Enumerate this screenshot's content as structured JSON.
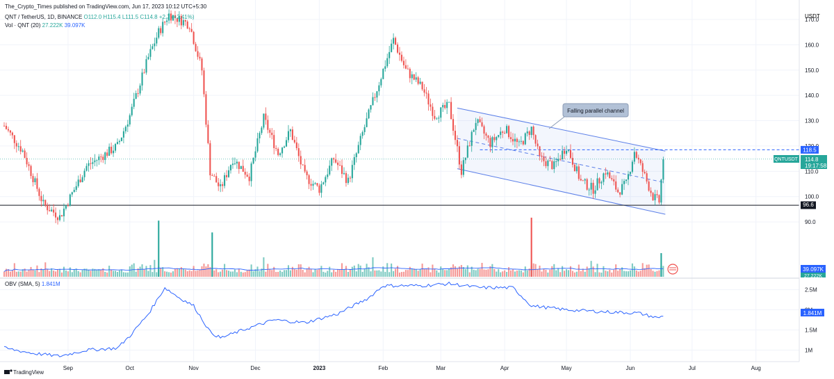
{
  "header": {
    "published_by": "The_Crypto_Times published on TradingView.com, Jun 17, 2023 10:12 UTC+5:30",
    "symbol_line": "QNT / TetherUS, 1D, BINANCE",
    "ohlc": {
      "open": "O112.0",
      "high": "H115.4",
      "low": "L111.5",
      "close": "C114.8",
      "change": "+2.7 (+2.41%)"
    },
    "volume_line": {
      "label": "Vol · QNT (20)",
      "v1": "27.222K",
      "v2": "39.097K"
    },
    "obv_line": {
      "label": "OBV (SMA, 5)",
      "value": "1.841M"
    }
  },
  "footer": {
    "brand": "TradingView"
  },
  "colors": {
    "up": "#26a69a",
    "down": "#ef5350",
    "channel": "#5b7fe8",
    "obv": "#2962ff",
    "vol_ma": "#2962ff",
    "level_line": "#131722",
    "resistance": "#2962ff"
  },
  "chart_data": [
    {
      "type": "candlestick",
      "title": "QNT / TetherUS, 1D, BINANCE",
      "y_unit": "USDT",
      "ylim": [
        87,
        170
      ],
      "y_ticks": [
        "90.0",
        "100.0",
        "110.0",
        "120.0",
        "130.0",
        "140.0",
        "150.0",
        "160.0",
        "170.0"
      ],
      "x_ticks": [
        "Sep",
        "Oct",
        "Nov",
        "Dec",
        "2023",
        "Feb",
        "Mar",
        "Apr",
        "May",
        "Jun",
        "Jul",
        "Aug"
      ],
      "close_path": [
        {
          "date": "2022-08-01",
          "close": 128
        },
        {
          "date": "2022-08-10",
          "close": 118
        },
        {
          "date": "2022-08-20",
          "close": 97
        },
        {
          "date": "2022-08-28",
          "close": 92
        },
        {
          "date": "2022-09-10",
          "close": 112
        },
        {
          "date": "2022-09-25",
          "close": 120
        },
        {
          "date": "2022-10-01",
          "close": 132
        },
        {
          "date": "2022-10-10",
          "close": 155
        },
        {
          "date": "2022-10-15",
          "close": 165
        },
        {
          "date": "2022-10-20",
          "close": 172
        },
        {
          "date": "2022-10-30",
          "close": 168
        },
        {
          "date": "2022-11-05",
          "close": 150
        },
        {
          "date": "2022-11-09",
          "close": 110
        },
        {
          "date": "2022-11-14",
          "close": 103
        },
        {
          "date": "2022-11-20",
          "close": 115
        },
        {
          "date": "2022-11-28",
          "close": 108
        },
        {
          "date": "2022-12-05",
          "close": 131
        },
        {
          "date": "2022-12-12",
          "close": 117
        },
        {
          "date": "2022-12-18",
          "close": 126
        },
        {
          "date": "2022-12-25",
          "close": 108
        },
        {
          "date": "2023-01-01",
          "close": 103
        },
        {
          "date": "2023-01-08",
          "close": 115
        },
        {
          "date": "2023-01-15",
          "close": 106
        },
        {
          "date": "2023-01-22",
          "close": 125
        },
        {
          "date": "2023-02-01",
          "close": 150
        },
        {
          "date": "2023-02-06",
          "close": 162
        },
        {
          "date": "2023-02-12",
          "close": 150
        },
        {
          "date": "2023-02-20",
          "close": 143
        },
        {
          "date": "2023-02-26",
          "close": 132
        },
        {
          "date": "2023-03-05",
          "close": 136
        },
        {
          "date": "2023-03-11",
          "close": 110
        },
        {
          "date": "2023-03-18",
          "close": 130
        },
        {
          "date": "2023-03-25",
          "close": 121
        },
        {
          "date": "2023-04-01",
          "close": 127
        },
        {
          "date": "2023-04-08",
          "close": 120
        },
        {
          "date": "2023-04-14",
          "close": 127
        },
        {
          "date": "2023-04-18",
          "close": 115
        },
        {
          "date": "2023-04-25",
          "close": 112
        },
        {
          "date": "2023-05-01",
          "close": 120
        },
        {
          "date": "2023-05-08",
          "close": 106
        },
        {
          "date": "2023-05-14",
          "close": 103
        },
        {
          "date": "2023-05-20",
          "close": 110
        },
        {
          "date": "2023-05-26",
          "close": 102
        },
        {
          "date": "2023-05-30",
          "close": 105
        },
        {
          "date": "2023-06-03",
          "close": 118
        },
        {
          "date": "2023-06-08",
          "close": 108
        },
        {
          "date": "2023-06-12",
          "close": 100
        },
        {
          "date": "2023-06-15",
          "close": 98
        },
        {
          "date": "2023-06-17",
          "close": 114.8
        }
      ],
      "annotations": {
        "channel_label": "Falling parallel channel",
        "resistance": {
          "value": 118.5,
          "label": "118.5"
        },
        "support": {
          "value": 96.6,
          "label": "96.6"
        },
        "last_price": {
          "symbol": "QNTUSDT",
          "value": "114.8",
          "countdown": "19:17:58"
        },
        "channel_upper": [
          {
            "date": "2023-03-09",
            "y": 135
          },
          {
            "date": "2023-06-18",
            "y": 118
          }
        ],
        "channel_lower": [
          {
            "date": "2023-03-09",
            "y": 111
          },
          {
            "date": "2023-06-18",
            "y": 93
          }
        ]
      }
    },
    {
      "type": "bar",
      "title": "Vol · QNT (20)",
      "series": [
        {
          "name": "Volume MA",
          "last": "39.097K"
        }
      ],
      "value_labels": [
        "39.097K",
        "27.222K"
      ]
    },
    {
      "type": "line",
      "title": "OBV (SMA, 5)",
      "y_ticks": [
        "1M",
        "1.5M",
        "2M",
        "2.5M"
      ],
      "ylim": [
        0.8,
        2.7
      ],
      "last_value": "1.841M",
      "path": [
        {
          "date": "2022-08-01",
          "value": 1.05
        },
        {
          "date": "2022-08-15",
          "value": 0.92
        },
        {
          "date": "2022-08-28",
          "value": 0.85
        },
        {
          "date": "2022-09-10",
          "value": 1.0
        },
        {
          "date": "2022-09-25",
          "value": 1.05
        },
        {
          "date": "2022-10-01",
          "value": 1.35
        },
        {
          "date": "2022-10-10",
          "value": 1.9
        },
        {
          "date": "2022-10-18",
          "value": 2.55
        },
        {
          "date": "2022-10-25",
          "value": 2.3
        },
        {
          "date": "2022-11-01",
          "value": 2.1
        },
        {
          "date": "2022-11-09",
          "value": 1.45
        },
        {
          "date": "2022-11-14",
          "value": 1.3
        },
        {
          "date": "2022-11-25",
          "value": 1.5
        },
        {
          "date": "2022-12-10",
          "value": 1.75
        },
        {
          "date": "2022-12-25",
          "value": 1.68
        },
        {
          "date": "2023-01-10",
          "value": 1.9
        },
        {
          "date": "2023-01-25",
          "value": 2.3
        },
        {
          "date": "2023-02-01",
          "value": 2.6
        },
        {
          "date": "2023-02-20",
          "value": 2.6
        },
        {
          "date": "2023-03-05",
          "value": 2.65
        },
        {
          "date": "2023-03-20",
          "value": 2.55
        },
        {
          "date": "2023-04-05",
          "value": 2.55
        },
        {
          "date": "2023-04-14",
          "value": 2.1
        },
        {
          "date": "2023-05-01",
          "value": 2.0
        },
        {
          "date": "2023-05-20",
          "value": 1.95
        },
        {
          "date": "2023-06-05",
          "value": 1.92
        },
        {
          "date": "2023-06-14",
          "value": 1.8
        },
        {
          "date": "2023-06-17",
          "value": 1.841
        }
      ]
    }
  ]
}
